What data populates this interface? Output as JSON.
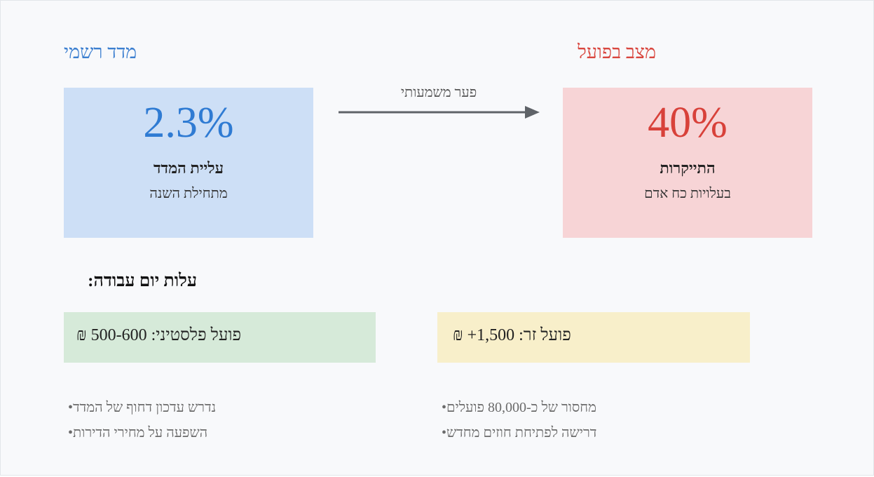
{
  "official": {
    "heading": "מדד רשמי",
    "value": "2.3%",
    "caption": "עליית המדד",
    "sub_caption": "מתחילת השנה",
    "color": "#2f7bd3"
  },
  "actual": {
    "heading": "מצב בפועל",
    "value": "40%",
    "caption": "התייקרות",
    "sub_caption": "בעלויות כח אדם",
    "color": "#d8413a"
  },
  "gap_label": "פער משמעותי",
  "workday_cost": {
    "title": "עלות יום עבודה:",
    "palestinian": "₪ פועל פלסטיני: 500-600",
    "foreign": "₪ +פועל זר: 1,500"
  },
  "bullets_left": [
    "נדרש עדכון דחוף של המדד",
    "השפעה על מחירי הדירות"
  ],
  "bullets_right": [
    "מחסור של כ-80,000 פועלים",
    "דרישה לפתיחת חוזים מחדש"
  ]
}
